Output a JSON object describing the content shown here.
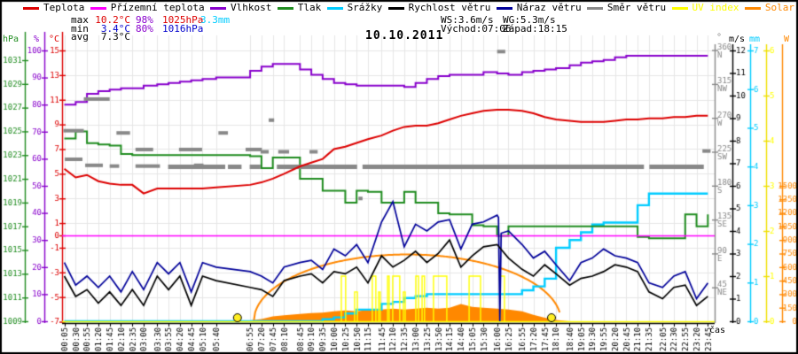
{
  "title": "10.10.2011",
  "legend": {
    "items": [
      {
        "label": "Teplota",
        "color": "#dd0000",
        "text_color": "#000000"
      },
      {
        "label": "Přízemní teplota",
        "color": "#ff00ff",
        "text_color": "#000000"
      },
      {
        "label": "Vlhkost",
        "color": "#8800cc",
        "text_color": "#000000"
      },
      {
        "label": "Tlak",
        "color": "#1f8c1f",
        "text_color": "#000000"
      },
      {
        "label": "Srážky",
        "color": "#00ccff",
        "text_color": "#000000"
      },
      {
        "label": "Rychlost větru",
        "color": "#000000",
        "text_color": "#000000"
      },
      {
        "label": "Náraz větru",
        "color": "#000099",
        "text_color": "#000000"
      },
      {
        "label": "Směr větru",
        "color": "#888888",
        "text_color": "#000000"
      },
      {
        "label": "UV index",
        "color": "#ffff00",
        "text_color": "#ffff00"
      },
      {
        "label": "Solar",
        "color": "#ff8800",
        "text_color": "#ff8800"
      }
    ]
  },
  "stats": {
    "max_label": "max",
    "max_temp": "10.2°C",
    "max_hum": "98%",
    "max_pres": "1025hPa",
    "max_rain": "3.3mm",
    "min_label": "min",
    "min_temp": "3.4°C",
    "min_hum": "80%",
    "min_pres": "1016hPa",
    "avg_label": "avg",
    "avg_temp": "7.3°C",
    "ws": "WS:3.6m/s",
    "wg": "WG:5.3m/s",
    "sunrise": "Východ:07:06",
    "sunset": "Západ:18:15"
  },
  "chart_data": {
    "type": "line",
    "title": "10.10.2011",
    "grid": true,
    "times": [
      "00:05",
      "00:30",
      "00:55",
      "01:20",
      "01:45",
      "02:10",
      "02:35",
      "03:00",
      "03:30",
      "03:55",
      "04:20",
      "04:45",
      "05:10",
      "05:40",
      "06:55",
      "07:20",
      "07:45",
      "08:10",
      "08:45",
      "09:10",
      "09:35",
      "10:00",
      "10:25",
      "10:50",
      "11:15",
      "11:45",
      "12:10",
      "12:35",
      "13:00",
      "13:25",
      "13:50",
      "14:15",
      "14:40",
      "15:05",
      "15:30",
      "16:00",
      "16:25",
      "16:55",
      "17:20",
      "17:45",
      "18:10",
      "18:40",
      "19:05",
      "19:30",
      "19:55",
      "20:20",
      "20:45",
      "21:10",
      "21:35",
      "22:05",
      "22:30",
      "22:55",
      "23:20",
      "23:45"
    ],
    "axes": {
      "x": {
        "label": "čas"
      },
      "left": [
        {
          "id": "pressure",
          "header": "hPa",
          "color": "#1f8c1f",
          "range": [
            1009,
            1031
          ],
          "ticks": [
            1031,
            1029,
            1027,
            1025,
            1023,
            1021,
            1019,
            1017,
            1015,
            1013,
            1011,
            1009
          ]
        },
        {
          "id": "humidity",
          "header": "%",
          "color": "#8800cc",
          "range": [
            0,
            100
          ],
          "ticks": [
            100,
            90,
            80,
            70,
            60,
            50,
            40,
            30,
            20,
            10,
            0
          ]
        },
        {
          "id": "temperature",
          "header": "°C",
          "color": "#dd0000",
          "range": [
            -7,
            15
          ],
          "ticks": [
            15,
            13,
            11,
            9,
            7,
            5,
            3,
            1,
            0,
            -1,
            -3,
            -5,
            -7
          ]
        }
      ],
      "right": [
        {
          "id": "direction",
          "header": "°",
          "color": "#888888",
          "range": [
            0,
            360
          ],
          "ticks": [
            {
              "v": 360,
              "l": "N"
            },
            {
              "v": 315,
              "l": "NW"
            },
            {
              "v": 270,
              "l": "W"
            },
            {
              "v": 225,
              "l": "SW"
            },
            {
              "v": 180,
              "l": "S"
            },
            {
              "v": 135,
              "l": "SE"
            },
            {
              "v": 90,
              "l": "E"
            },
            {
              "v": 45,
              "l": "NE"
            }
          ]
        },
        {
          "id": "wind",
          "header": "m/s",
          "color": "#000000",
          "range": [
            0,
            12
          ],
          "ticks": [
            12,
            11,
            10,
            9,
            8,
            7,
            6,
            5,
            4,
            3,
            2,
            1,
            0
          ]
        },
        {
          "id": "rain",
          "header": "mm",
          "color": "#00ccff",
          "range": [
            0,
            7
          ],
          "ticks": [
            7,
            6,
            5,
            4,
            3,
            2,
            1,
            0
          ]
        },
        {
          "id": "uv",
          "header": "",
          "color": "#ffff00",
          "range": [
            0,
            6
          ],
          "ticks": [
            6,
            5,
            4,
            3,
            2,
            1,
            0
          ]
        },
        {
          "id": "solar",
          "header": "W",
          "color": "#ff8800",
          "range": [
            0,
            1500
          ],
          "ticks": [
            1500,
            1350,
            1200,
            1050,
            900,
            750,
            600,
            450,
            300,
            150,
            0
          ]
        }
      ]
    },
    "series": [
      {
        "name": "Teplota",
        "unit": "°C",
        "axis": "temperature",
        "color": "#dd0000",
        "style": "linear",
        "values": [
          5.4,
          4.7,
          4.9,
          4.4,
          4.2,
          4.1,
          4.1,
          3.4,
          3.8,
          3.8,
          3.8,
          3.8,
          3.8,
          3.9,
          4.1,
          4.3,
          4.6,
          5.0,
          5.6,
          5.9,
          6.2,
          7.0,
          7.2,
          7.5,
          7.8,
          8.1,
          8.5,
          8.8,
          8.9,
          8.9,
          9.1,
          9.4,
          9.7,
          9.9,
          10.1,
          10.2,
          10.2,
          10.1,
          9.9,
          9.6,
          9.4,
          9.3,
          9.2,
          9.2,
          9.2,
          9.3,
          9.4,
          9.4,
          9.5,
          9.5,
          9.6,
          9.6,
          9.7,
          9.7
        ]
      },
      {
        "name": "Přízemní teplota",
        "unit": "°C",
        "axis": "temperature",
        "color": "#ff00ff",
        "style": "constant",
        "constant": 0.0
      },
      {
        "name": "Vlhkost",
        "unit": "%",
        "axis": "humidity",
        "color": "#8800cc",
        "style": "step",
        "values": [
          80,
          81,
          84,
          85,
          85.5,
          86,
          86,
          87,
          87.5,
          88,
          88.5,
          89,
          89.5,
          90,
          92.5,
          94,
          95,
          95,
          93,
          91,
          89.5,
          88,
          87.5,
          87,
          87,
          87,
          87,
          86.5,
          88,
          89.5,
          90.5,
          91,
          91,
          91,
          92,
          91.5,
          91,
          92,
          92.5,
          93,
          93.5,
          94.5,
          95.5,
          96,
          96.5,
          97.5,
          98,
          98,
          98,
          98,
          98,
          98,
          98,
          98
        ]
      },
      {
        "name": "Tlak",
        "unit": "hPa",
        "axis": "pressure",
        "color": "#1f8c1f",
        "style": "step",
        "values": [
          1024.4,
          1025.0,
          1024.0,
          1023.9,
          1023.8,
          1023.1,
          1023.0,
          1023.0,
          1023.0,
          1023.0,
          1023.0,
          1023.0,
          1023.0,
          1023.0,
          1022.9,
          1021.9,
          1022.8,
          1022.8,
          1021.0,
          1021.0,
          1020.0,
          1020.0,
          1019.0,
          1020.0,
          1019.9,
          1019.0,
          1019.0,
          1019.9,
          1019.0,
          1019.0,
          1018.1,
          1018.0,
          1018.0,
          1017.1,
          1017.0,
          1016.2,
          1017.0,
          1017.0,
          1017.0,
          1017.0,
          1017.0,
          1017.0,
          1017.0,
          1017.0,
          1017.0,
          1017.0,
          1017.0,
          1016.1,
          1016.0,
          1016.0,
          1016.0,
          1018.0,
          1017.0,
          1018.0
        ]
      },
      {
        "name": "Srážky",
        "unit": "mm",
        "axis": "rain",
        "color": "#00ccff",
        "style": "step",
        "values": [
          0,
          0,
          0,
          0,
          0,
          0,
          0,
          0,
          0,
          0,
          0,
          0,
          0,
          0,
          0,
          0,
          0,
          0,
          0,
          0,
          0.05,
          0.1,
          0.2,
          0.3,
          0.3,
          0.45,
          0.5,
          0.6,
          0.65,
          0.7,
          0.7,
          0.7,
          0.7,
          0.7,
          0.7,
          0.7,
          0.7,
          0.8,
          0.9,
          1.1,
          1.9,
          2.1,
          2.3,
          2.5,
          2.55,
          2.55,
          2.55,
          3.0,
          3.3,
          3.3,
          3.3,
          3.3,
          3.3,
          3.3
        ]
      },
      {
        "name": "Rychlost větru",
        "unit": "m/s",
        "axis": "wind",
        "color": "#000000",
        "style": "linear",
        "values": [
          2.0,
          1.1,
          1.4,
          0.8,
          1.3,
          0.7,
          1.4,
          0.7,
          2.0,
          1.4,
          2.0,
          0.7,
          2.0,
          1.8,
          1.5,
          1.4,
          1.1,
          1.8,
          2.0,
          2.1,
          1.7,
          2.2,
          2.1,
          2.4,
          1.7,
          2.9,
          2.4,
          2.7,
          3.1,
          2.6,
          3.0,
          3.6,
          2.4,
          2.9,
          3.3,
          3.4,
          2.8,
          2.3,
          2.0,
          2.5,
          2.1,
          1.6,
          1.9,
          2.0,
          2.2,
          2.5,
          2.4,
          2.2,
          1.3,
          1.0,
          1.5,
          1.6,
          0.7,
          1.1
        ]
      },
      {
        "name": "Náraz větru",
        "unit": "m/s",
        "axis": "wind",
        "color": "#000099",
        "style": "linear",
        "dropout": {
          "hour": 16.1,
          "value": 0.0
        },
        "values": [
          2.6,
          1.6,
          2.0,
          1.5,
          2.0,
          1.3,
          2.2,
          1.4,
          2.6,
          2.1,
          2.6,
          1.3,
          2.6,
          2.4,
          2.2,
          2.0,
          1.7,
          2.4,
          2.6,
          2.7,
          2.3,
          3.2,
          2.9,
          3.4,
          2.6,
          4.4,
          5.3,
          3.3,
          4.3,
          4.0,
          4.4,
          4.5,
          3.2,
          4.3,
          4.4,
          4.7,
          4.0,
          3.4,
          2.8,
          3.1,
          2.5,
          1.8,
          2.6,
          2.8,
          3.2,
          2.9,
          2.8,
          2.6,
          1.7,
          1.5,
          2.0,
          2.2,
          1.0,
          1.7
        ]
      },
      {
        "name": "Směr větru",
        "unit": "°",
        "axis": "direction",
        "color": "#888888",
        "style": "dashes",
        "bar_deg": 205,
        "bar_segments_h": [
          [
            3.9,
            6.0
          ],
          [
            6.1,
            6.6
          ],
          [
            6.9,
            7.3
          ],
          [
            7.9,
            10.85
          ],
          [
            11.05,
            21.4
          ],
          [
            21.6,
            23.6
          ]
        ],
        "dashes": [
          [
            0.05,
            0.8,
            253
          ],
          [
            0.1,
            0.75,
            215
          ],
          [
            0.8,
            1.75,
            295
          ],
          [
            0.85,
            1.5,
            207
          ],
          [
            1.75,
            2.1,
            206
          ],
          [
            2.0,
            2.5,
            250
          ],
          [
            2.7,
            3.6,
            206
          ],
          [
            2.7,
            3.35,
            228
          ],
          [
            4.3,
            5.15,
            228
          ],
          [
            4.85,
            5.2,
            207
          ],
          [
            5.75,
            6.1,
            250
          ],
          [
            6.75,
            7.35,
            228
          ],
          [
            7.3,
            7.6,
            225
          ],
          [
            7.6,
            7.8,
            267
          ],
          [
            7.95,
            8.35,
            225
          ],
          [
            9.1,
            9.4,
            225
          ],
          [
            10.9,
            11.05,
            163
          ],
          [
            16.0,
            16.3,
            358
          ],
          [
            23.55,
            23.85,
            226
          ]
        ]
      },
      {
        "name": "UV index",
        "unit": "",
        "axis": "uv",
        "color": "#ffff00",
        "style": "pulses",
        "pulses": [
          [
            10.27,
            10.43,
            1
          ],
          [
            10.76,
            10.86,
            0.65
          ],
          [
            11.41,
            11.54,
            1
          ],
          [
            11.64,
            11.7,
            0.65
          ],
          [
            11.97,
            12.03,
            1
          ],
          [
            12.16,
            12.42,
            1
          ],
          [
            12.55,
            12.62,
            0.65
          ],
          [
            13.01,
            13.11,
            1
          ],
          [
            13.24,
            13.33,
            1
          ],
          [
            13.66,
            14.15,
            1
          ],
          [
            14.97,
            15.39,
            1
          ],
          [
            16.11,
            16.27,
            1
          ]
        ]
      },
      {
        "name": "Solar",
        "unit": "W",
        "axis": "solar",
        "color": "#ff8800",
        "style": "area",
        "max_curve": {
          "shape": "ellipse",
          "peak_w": 740,
          "center_hour": 12.7,
          "half_width_hours": 5.65
        },
        "values": [
          0,
          0,
          0,
          0,
          0,
          0,
          0,
          0,
          0,
          0,
          0,
          0,
          0,
          0,
          10,
          25,
          55,
          65,
          80,
          90,
          95,
          110,
          120,
          110,
          125,
          130,
          140,
          130,
          140,
          150,
          140,
          150,
          190,
          160,
          150,
          140,
          130,
          110,
          70,
          40,
          15,
          0,
          0,
          0,
          0,
          0,
          0,
          0,
          0,
          0,
          0,
          0,
          0,
          0
        ]
      }
    ],
    "sun_markers_h": [
      6.45,
      18.0
    ]
  }
}
